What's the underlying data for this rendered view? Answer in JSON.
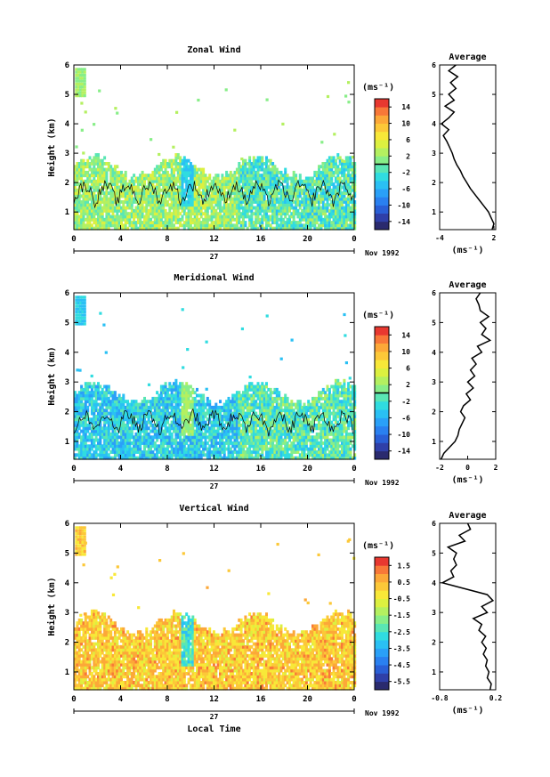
{
  "figure": {
    "date_label": "Nov 1992",
    "day_label": "27",
    "xlabel": "Local Time",
    "ylabel": "Height (km)",
    "unit_label": "(ms⁻¹)"
  },
  "chart_data": [
    {
      "type": "heatmap",
      "title": "Zonal Wind",
      "x_ticks": [
        "0",
        "4",
        "8",
        "12",
        "16",
        "20",
        "0"
      ],
      "xlim": [
        0,
        24
      ],
      "y_ticks": [
        "1",
        "2",
        "3",
        "4",
        "5",
        "6"
      ],
      "ylim": [
        0.4,
        6.0
      ],
      "colorbar_ticks": [
        "14",
        "10",
        "6",
        "2",
        "-2",
        "-6",
        "-10",
        "-14"
      ],
      "colorbar_range": [
        -16,
        16
      ],
      "colorbar_zero_line": true,
      "contour_level": 0,
      "base_value": 2,
      "base_spread": 4,
      "late_value": -1,
      "data_top_km": 2.5,
      "patch_value": -4
    },
    {
      "type": "line",
      "title": "Average",
      "x_ticks": [
        "-4",
        "2"
      ],
      "xlim": [
        -4,
        2.2
      ],
      "y_ticks": [
        "1",
        "2",
        "3",
        "4",
        "5",
        "6"
      ],
      "ylim": [
        0.4,
        6.0
      ],
      "xlabel": "(ms⁻¹)",
      "points": [
        [
          1.8,
          0.4
        ],
        [
          2.0,
          0.6
        ],
        [
          1.7,
          0.8
        ],
        [
          1.4,
          1.0
        ],
        [
          0.9,
          1.2
        ],
        [
          0.4,
          1.4
        ],
        [
          -0.1,
          1.6
        ],
        [
          -0.6,
          1.8
        ],
        [
          -1.0,
          2.0
        ],
        [
          -1.4,
          2.2
        ],
        [
          -1.7,
          2.4
        ],
        [
          -2.1,
          2.6
        ],
        [
          -2.4,
          2.8
        ],
        [
          -2.6,
          3.0
        ],
        [
          -2.9,
          3.2
        ],
        [
          -3.2,
          3.4
        ],
        [
          -3.6,
          3.6
        ],
        [
          -3.0,
          3.8
        ],
        [
          -3.8,
          4.0
        ],
        [
          -3.0,
          4.2
        ],
        [
          -2.4,
          4.4
        ],
        [
          -3.4,
          4.6
        ],
        [
          -2.4,
          4.8
        ],
        [
          -3.0,
          5.0
        ],
        [
          -2.2,
          5.2
        ],
        [
          -2.8,
          5.4
        ],
        [
          -2.0,
          5.6
        ],
        [
          -3.0,
          5.8
        ],
        [
          -2.2,
          6.0
        ]
      ]
    },
    {
      "type": "heatmap",
      "title": "Meridional Wind",
      "x_ticks": [
        "0",
        "4",
        "8",
        "12",
        "16",
        "20",
        "0"
      ],
      "xlim": [
        0,
        24
      ],
      "y_ticks": [
        "1",
        "2",
        "3",
        "4",
        "5",
        "6"
      ],
      "ylim": [
        0.4,
        6.0
      ],
      "colorbar_ticks": [
        "14",
        "10",
        "6",
        "2",
        "-2",
        "-6",
        "-10",
        "-14"
      ],
      "colorbar_range": [
        -16,
        16
      ],
      "colorbar_zero_line": true,
      "contour_level": 0,
      "base_value": -4,
      "base_spread": 4,
      "late_value": -1,
      "data_top_km": 2.6,
      "patch_value": 2
    },
    {
      "type": "line",
      "title": "Average",
      "x_ticks": [
        "-2",
        "0",
        "2"
      ],
      "xlim": [
        -2,
        2
      ],
      "y_ticks": [
        "1",
        "2",
        "3",
        "4",
        "5",
        "6"
      ],
      "ylim": [
        0.4,
        6.0
      ],
      "xlabel": "(ms⁻¹)",
      "points": [
        [
          -1.9,
          0.4
        ],
        [
          -1.7,
          0.6
        ],
        [
          -1.3,
          0.8
        ],
        [
          -0.9,
          1.0
        ],
        [
          -0.7,
          1.2
        ],
        [
          -0.6,
          1.4
        ],
        [
          -0.4,
          1.6
        ],
        [
          -0.2,
          1.8
        ],
        [
          -0.5,
          2.0
        ],
        [
          -0.3,
          2.2
        ],
        [
          0.2,
          2.4
        ],
        [
          -0.1,
          2.6
        ],
        [
          0.4,
          2.8
        ],
        [
          0.0,
          3.0
        ],
        [
          0.5,
          3.2
        ],
        [
          0.2,
          3.4
        ],
        [
          0.6,
          3.6
        ],
        [
          0.3,
          3.8
        ],
        [
          1.0,
          4.0
        ],
        [
          0.7,
          4.2
        ],
        [
          1.6,
          4.4
        ],
        [
          1.0,
          4.6
        ],
        [
          1.3,
          4.8
        ],
        [
          0.9,
          5.0
        ],
        [
          1.5,
          5.2
        ],
        [
          0.9,
          5.4
        ],
        [
          0.8,
          5.6
        ],
        [
          0.6,
          5.8
        ],
        [
          0.9,
          6.0
        ]
      ]
    },
    {
      "type": "heatmap",
      "title": "Vertical Wind",
      "x_ticks": [
        "0",
        "4",
        "8",
        "12",
        "16",
        "20",
        "0"
      ],
      "xlim": [
        0,
        24
      ],
      "y_ticks": [
        "1",
        "2",
        "3",
        "4",
        "5",
        "6"
      ],
      "ylim": [
        0.4,
        6.0
      ],
      "colorbar_ticks": [
        "1.5",
        "0.5",
        "-0.5",
        "-1.5",
        "-2.5",
        "-3.5",
        "-4.5",
        "-5.5"
      ],
      "colorbar_range": [
        -6,
        2
      ],
      "colorbar_zero_line": false,
      "base_value": 0.2,
      "base_spread": 0.9,
      "late_value": 0.2,
      "data_top_km": 2.6,
      "patch_value": -2.5
    },
    {
      "type": "line",
      "title": "Average",
      "x_ticks": [
        "-0.8",
        "0.2"
      ],
      "xlim": [
        -0.8,
        0.2
      ],
      "y_ticks": [
        "1",
        "2",
        "3",
        "4",
        "5",
        "6"
      ],
      "ylim": [
        0.4,
        6.0
      ],
      "xlabel": "(ms⁻¹)",
      "points": [
        [
          0.1,
          0.4
        ],
        [
          0.12,
          0.6
        ],
        [
          0.05,
          0.8
        ],
        [
          0.08,
          1.0
        ],
        [
          0.02,
          1.2
        ],
        [
          0.05,
          1.4
        ],
        [
          -0.02,
          1.6
        ],
        [
          0.03,
          1.8
        ],
        [
          -0.05,
          2.0
        ],
        [
          0.02,
          2.2
        ],
        [
          -0.1,
          2.4
        ],
        [
          -0.05,
          2.6
        ],
        [
          -0.2,
          2.8
        ],
        [
          0.05,
          3.0
        ],
        [
          -0.05,
          3.2
        ],
        [
          0.15,
          3.4
        ],
        [
          0.05,
          3.6
        ],
        [
          -0.35,
          3.8
        ],
        [
          -0.75,
          4.0
        ],
        [
          -0.55,
          4.2
        ],
        [
          -0.6,
          4.4
        ],
        [
          -0.5,
          4.6
        ],
        [
          -0.55,
          4.8
        ],
        [
          -0.5,
          5.0
        ],
        [
          -0.65,
          5.2
        ],
        [
          -0.35,
          5.4
        ],
        [
          -0.45,
          5.6
        ],
        [
          -0.25,
          5.8
        ],
        [
          -0.3,
          6.0
        ]
      ]
    }
  ]
}
